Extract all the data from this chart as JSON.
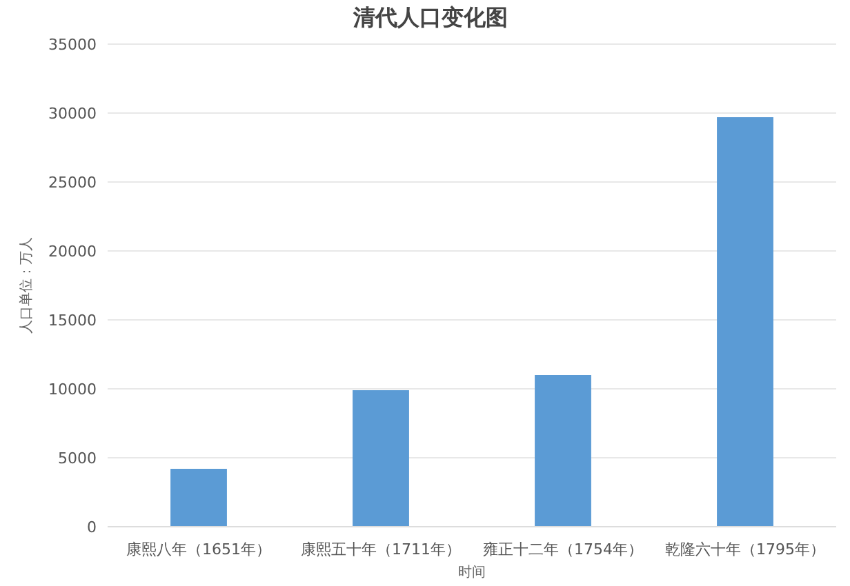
{
  "chart_data": {
    "type": "bar",
    "title": "清代人口变化图",
    "xlabel": "时间",
    "ylabel": "人口单位：万人",
    "categories": [
      "康熙八年（1651年）",
      "康熙五十年（1711年）",
      "雍正十二年（1754年）",
      "乾隆六十年（1795年）"
    ],
    "values": [
      4200,
      9900,
      11000,
      29700
    ],
    "color": "#5b9bd5",
    "ylim": [
      0,
      35000
    ],
    "yticks": [
      0,
      5000,
      10000,
      15000,
      20000,
      25000,
      30000,
      35000
    ],
    "grid": "y"
  }
}
